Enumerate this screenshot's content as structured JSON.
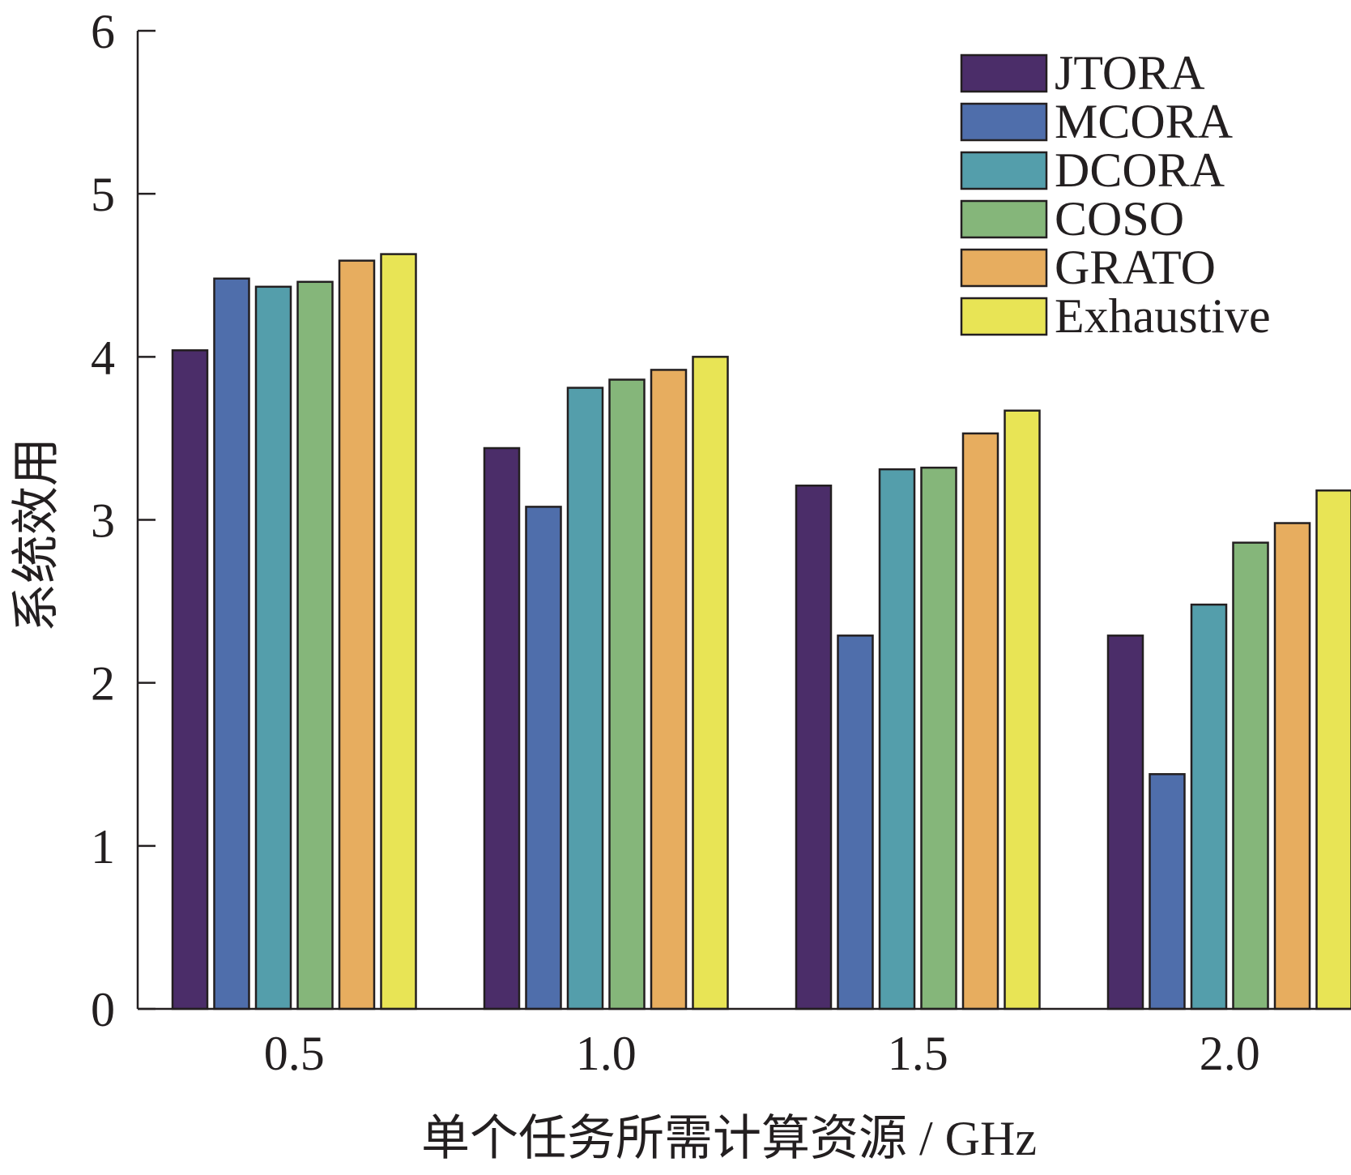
{
  "chart_data": {
    "type": "bar",
    "title": "",
    "xlabel": "单个任务所需计算资源 / GHz",
    "ylabel": "系统效用",
    "categories": [
      "0.5",
      "1.0",
      "1.5",
      "2.0"
    ],
    "ylim": [
      0,
      6
    ],
    "yticks": [
      "0",
      "1",
      "2",
      "3",
      "4",
      "5",
      "6"
    ],
    "grid": false,
    "legend_position": "top-right",
    "series": [
      {
        "name": "JTORA",
        "color": "#4b2d69",
        "values": [
          4.04,
          3.44,
          3.21,
          2.29
        ]
      },
      {
        "name": "MCORA",
        "color": "#4f6eab",
        "values": [
          4.48,
          3.08,
          2.29,
          1.44
        ]
      },
      {
        "name": "DCORA",
        "color": "#549eab",
        "values": [
          4.43,
          3.81,
          3.31,
          2.48
        ]
      },
      {
        "name": "COSO",
        "color": "#85b67a",
        "values": [
          4.46,
          3.86,
          3.32,
          2.86
        ]
      },
      {
        "name": "GRATO",
        "color": "#e7ad5f",
        "values": [
          4.59,
          3.92,
          3.53,
          2.98
        ]
      },
      {
        "name": "Exhaustive",
        "color": "#e8e455",
        "values": [
          4.63,
          4.0,
          3.67,
          3.18
        ]
      }
    ]
  }
}
